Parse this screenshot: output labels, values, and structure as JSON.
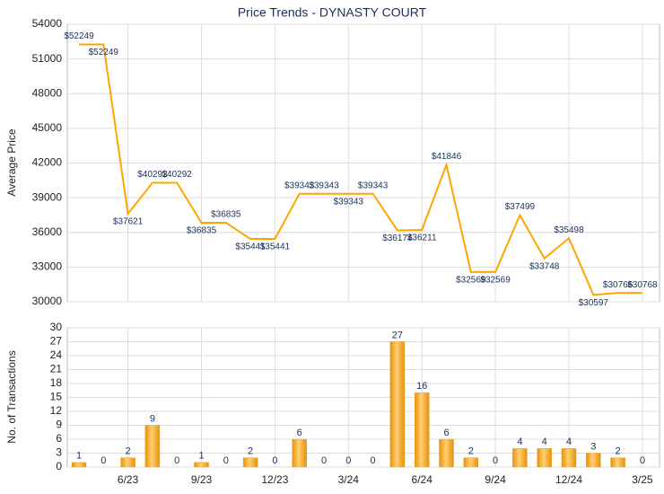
{
  "chart_data": [
    {
      "type": "line",
      "title": "Price Trends - DYNASTY COURT",
      "y_label": "Average Price",
      "color": "#ffa500",
      "values": [
        52249,
        52249,
        37621,
        40292,
        40292,
        36835,
        36835,
        35441,
        35441,
        39343,
        39343,
        39343,
        39343,
        36174,
        36211,
        41846,
        32569,
        32569,
        37499,
        33748,
        35498,
        30597,
        30766,
        30768
      ],
      "value_labels": [
        "$52249",
        "$52249",
        "$37621",
        "$40292",
        "$40292",
        "$36835",
        "$36835",
        "$35441",
        "$35441",
        "$39343",
        "$39343",
        "$39343",
        "$39343",
        "$36174",
        "$36211",
        "$41846",
        "$32569",
        "$32569",
        "$37499",
        "$33748",
        "$35498",
        "$30597",
        "$30766",
        "$30768"
      ],
      "ylim": [
        30000,
        54000
      ],
      "yticks": [
        30000,
        33000,
        36000,
        39000,
        42000,
        45000,
        48000,
        51000,
        54000
      ],
      "grid": true
    },
    {
      "type": "bar",
      "y_label": "No. of Transactions",
      "color": "#f5a31a",
      "categories": [
        null,
        null,
        "6/23",
        null,
        null,
        "9/23",
        null,
        null,
        "12/23",
        null,
        null,
        "3/24",
        null,
        null,
        "6/24",
        null,
        null,
        "9/24",
        null,
        null,
        "12/24",
        null,
        null,
        "3/25"
      ],
      "values": [
        1,
        0,
        2,
        9,
        0,
        1,
        0,
        2,
        0,
        6,
        0,
        0,
        0,
        27,
        16,
        6,
        2,
        0,
        4,
        4,
        4,
        3,
        2,
        0
      ],
      "ylim": [
        0,
        30
      ],
      "yticks": [
        0,
        3,
        6,
        9,
        12,
        15,
        18,
        21,
        24,
        27,
        30
      ],
      "grid": true
    }
  ]
}
